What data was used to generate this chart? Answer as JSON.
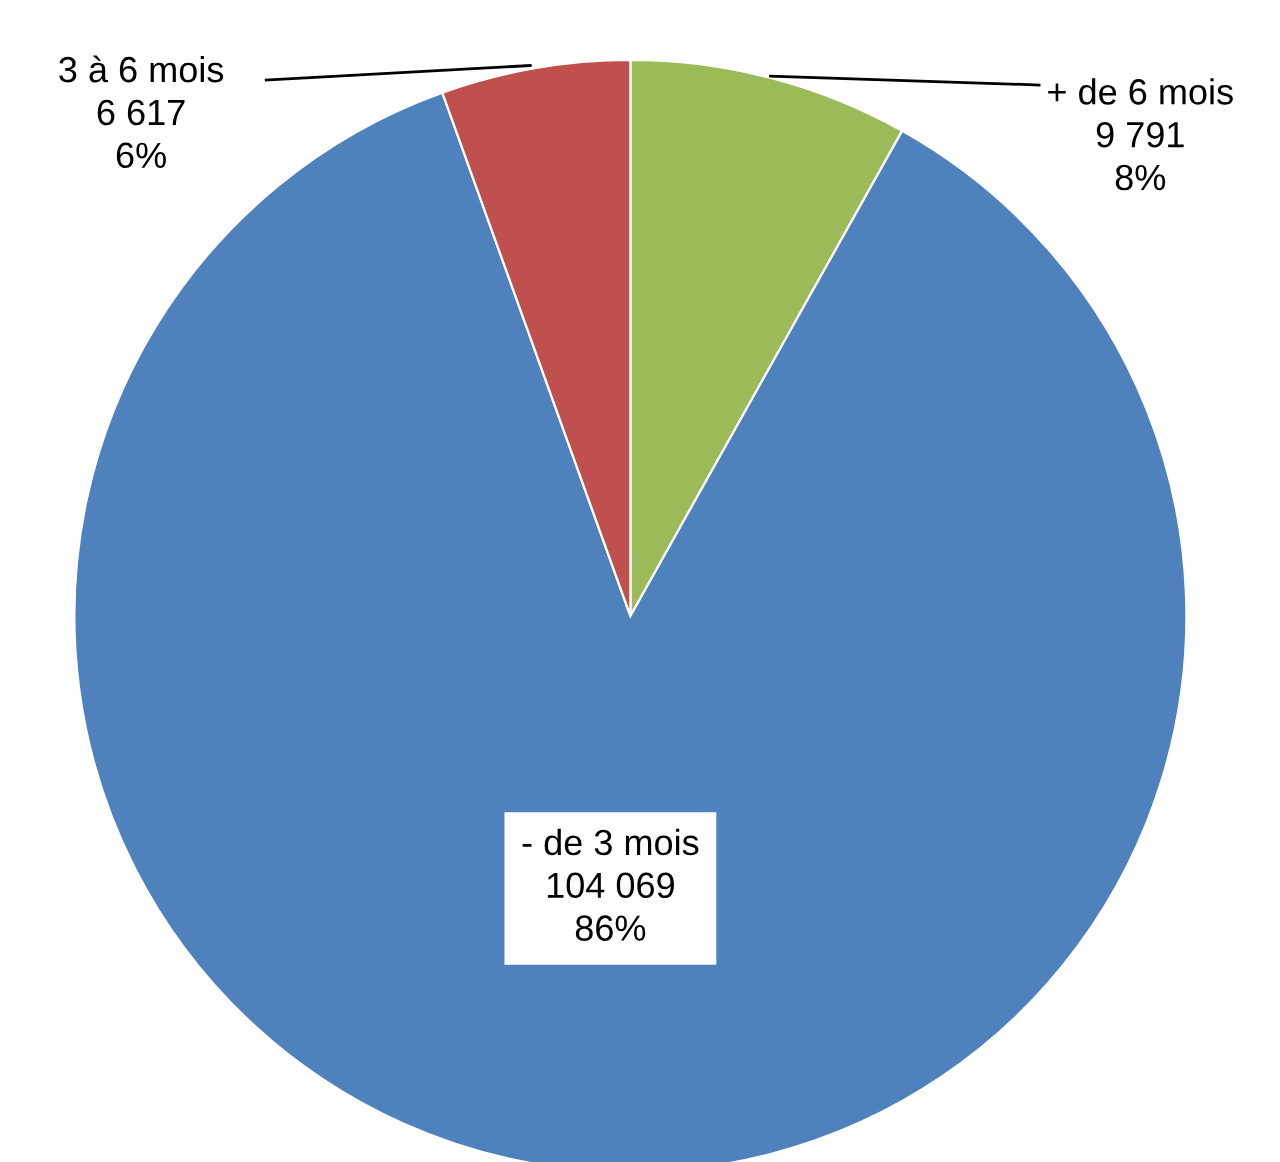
{
  "chart_data": {
    "type": "pie",
    "categories": [
      "+ de 6 mois",
      "- de 3 mois",
      "3 à 6 mois"
    ],
    "values": [
      9791,
      104069,
      6617
    ],
    "colors": [
      "#9bbb59",
      "#4f81bd",
      "#c0504d"
    ],
    "value_labels": [
      "9 791\n8%",
      "104 069\n86%",
      "6 617\n6%"
    ],
    "legend": false
  }
}
